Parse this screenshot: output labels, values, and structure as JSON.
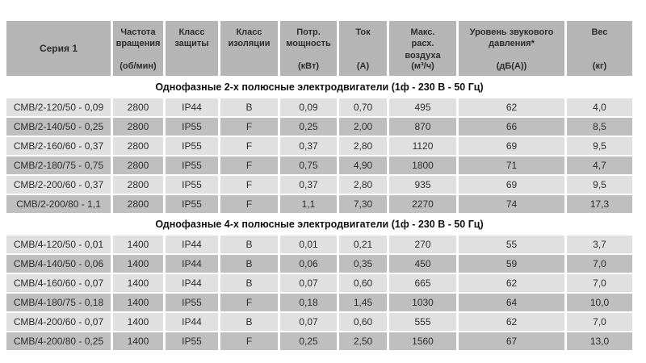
{
  "table": {
    "header": {
      "columns": [
        {
          "title": "Серия 1",
          "unit": ""
        },
        {
          "title": "Частота вращения",
          "unit": "(об/мин)"
        },
        {
          "title": "Класс защиты",
          "unit": ""
        },
        {
          "title": "Класс изоляции",
          "unit": ""
        },
        {
          "title": "Потр. мощность",
          "unit": "(кВт)"
        },
        {
          "title": "Ток",
          "unit": "(А)"
        },
        {
          "title": "Макс. расх. воздуха",
          "unit": "(м³/ч)"
        },
        {
          "title": "Уровень звукового давления*",
          "unit": "(дБ(А))"
        },
        {
          "title": "Вес",
          "unit": "(кг)"
        }
      ]
    },
    "sections": [
      {
        "title": "Однофазные 2-х полюсные электродвигатели (1ф - 230 В - 50 Гц)",
        "rows": [
          [
            "СМВ/2-120/50 - 0,09",
            "2800",
            "IP44",
            "B",
            "0,09",
            "0,70",
            "495",
            "62",
            "4,0"
          ],
          [
            "СМВ/2-140/50 - 0,25",
            "2800",
            "IP55",
            "F",
            "0,25",
            "2,00",
            "870",
            "66",
            "8,5"
          ],
          [
            "СМВ/2-160/60 - 0,37",
            "2800",
            "IP55",
            "F",
            "0,37",
            "2,80",
            "1120",
            "69",
            "9,5"
          ],
          [
            "СМВ/2-180/75 - 0,75",
            "2800",
            "IP55",
            "F",
            "0,75",
            "4,90",
            "1800",
            "71",
            "4,7"
          ],
          [
            "СМВ/2-200/60 - 0,37",
            "2800",
            "IP55",
            "F",
            "0,37",
            "2,80",
            "935",
            "69",
            "9,5"
          ],
          [
            "СМВ/2-200/80 - 1,1",
            "2800",
            "IP55",
            "F",
            "1,1",
            "7,30",
            "2270",
            "74",
            "17,3"
          ]
        ]
      },
      {
        "title": "Однофазные 4-х полюсные электродвигатели (1ф - 230 В - 50 Гц)",
        "rows": [
          [
            "СМВ/4-120/50 - 0,01",
            "1400",
            "IP44",
            "B",
            "0,01",
            "0,21",
            "270",
            "55",
            "3,7"
          ],
          [
            "СМВ/4-140/50 - 0,06",
            "1400",
            "IP44",
            "B",
            "0,06",
            "0,35",
            "450",
            "59",
            "7,0"
          ],
          [
            "СМВ/4-160/60 - 0,07",
            "1400",
            "IP44",
            "B",
            "0,07",
            "0,60",
            "665",
            "62",
            "7,0"
          ],
          [
            "СМВ/4-180/75 - 0,18",
            "1400",
            "IP55",
            "F",
            "0,18",
            "1,45",
            "1030",
            "64",
            "10,0"
          ],
          [
            "СМВ/4-200/60 - 0,07",
            "1400",
            "IP44",
            "B",
            "0,07",
            "0,60",
            "555",
            "62",
            "7,0"
          ],
          [
            "СМВ/4-200/80 - 0,25",
            "1400",
            "IP55",
            "F",
            "0,25",
            "2,50",
            "1560",
            "67",
            "13,0"
          ]
        ]
      }
    ]
  },
  "colors": {
    "header_bg": "#b5b5b5",
    "row_light_bg": "#e0e0e0",
    "row_dark_bg": "#bfbfbf",
    "text": "#2d2d2d",
    "background": "#ffffff"
  }
}
